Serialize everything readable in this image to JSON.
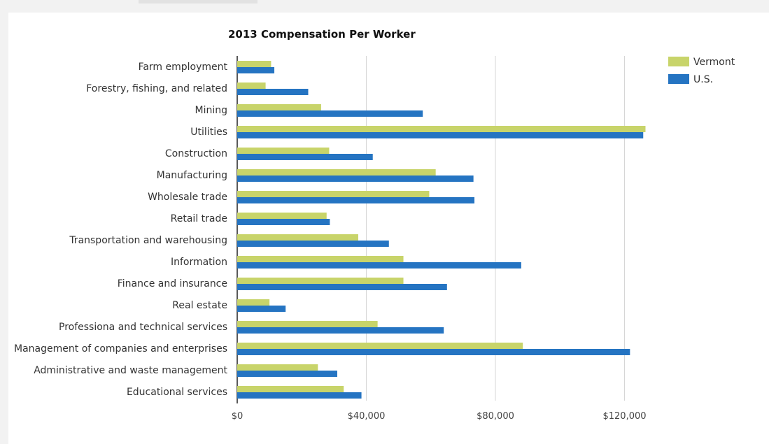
{
  "chart_data": {
    "type": "bar",
    "orientation": "horizontal",
    "title": "2013 Compensation Per Worker",
    "categories": [
      "Farm employment",
      "Forestry, fishing, and related",
      "Mining",
      "Utilities",
      "Construction",
      "Manufacturing",
      "Wholesale trade",
      "Retail trade",
      "Transportation and warehousing",
      "Information",
      "Finance and insurance",
      "Real estate",
      "Professiona and technical services",
      "Management of companies and enterprises",
      "Administrative and waste management",
      "Educational services"
    ],
    "series": [
      {
        "name": "Vermont",
        "color": "#c8d46a",
        "values": [
          10500,
          8800,
          26000,
          126500,
          28500,
          61500,
          59500,
          27700,
          37500,
          51500,
          51500,
          10000,
          43500,
          88500,
          25000,
          33000
        ]
      },
      {
        "name": "U.S.",
        "color": "#2574c2",
        "values": [
          11500,
          22000,
          57500,
          125800,
          42000,
          73200,
          73500,
          28700,
          47000,
          88000,
          65000,
          15000,
          64000,
          121700,
          31000,
          38500
        ]
      }
    ],
    "xlim": [
      0,
      150000
    ],
    "xticks": [
      "$0",
      "$40,000",
      "$80,000",
      "$120,000"
    ],
    "xtick_values": [
      0,
      40000,
      80000,
      120000
    ],
    "grid": true,
    "legend": "top-right"
  }
}
